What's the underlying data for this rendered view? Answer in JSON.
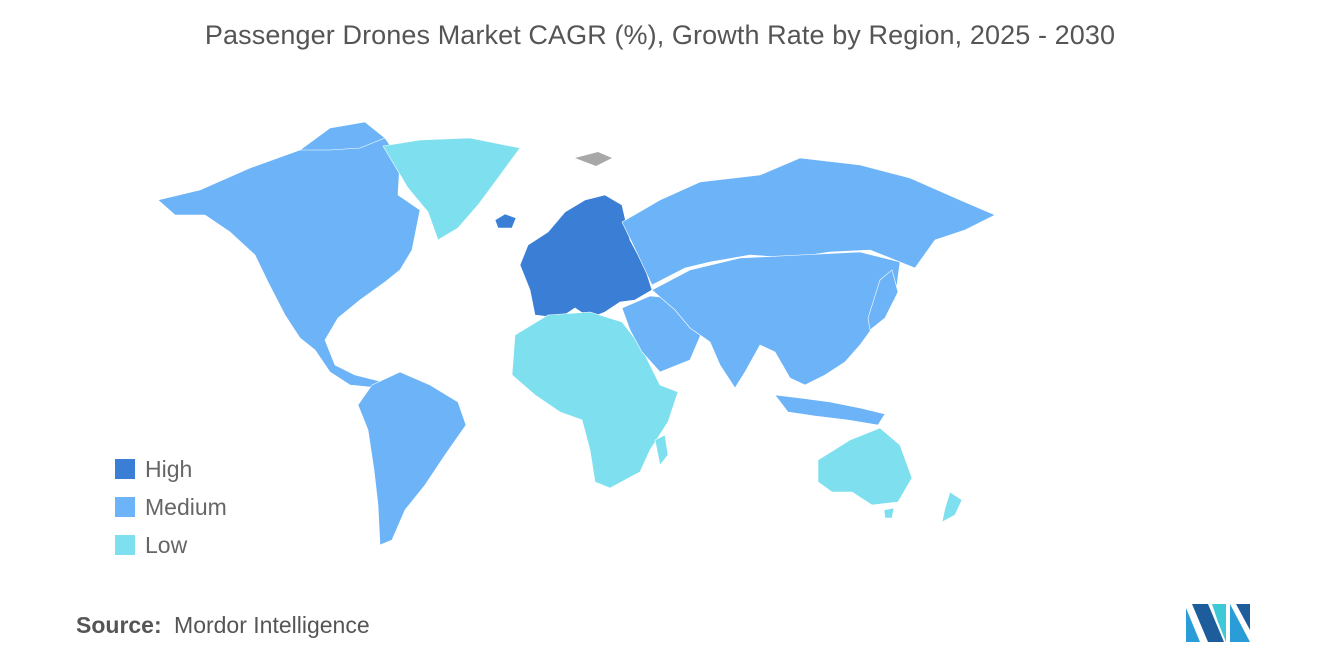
{
  "title": "Passenger Drones Market CAGR (%), Growth Rate by Region, 2025 - 2030",
  "legend": [
    {
      "label": "High",
      "color": "#3a7fd5"
    },
    {
      "label": "Medium",
      "color": "#6cb4f7"
    },
    {
      "label": "Low",
      "color": "#7ee0ef"
    }
  ],
  "no_data_color": "#a8a8a8",
  "regions": {
    "north_america": "Medium",
    "south_america": "Medium",
    "greenland": "Low",
    "europe": "High",
    "africa": "Low",
    "middle_east": "Medium",
    "russia": "Medium",
    "asia": "Medium",
    "australia": "Low",
    "new_zealand": "Low"
  },
  "source": {
    "label": "Source:",
    "text": "Mordor Intelligence"
  },
  "logo_icon": "mordor-intelligence-logo-icon"
}
